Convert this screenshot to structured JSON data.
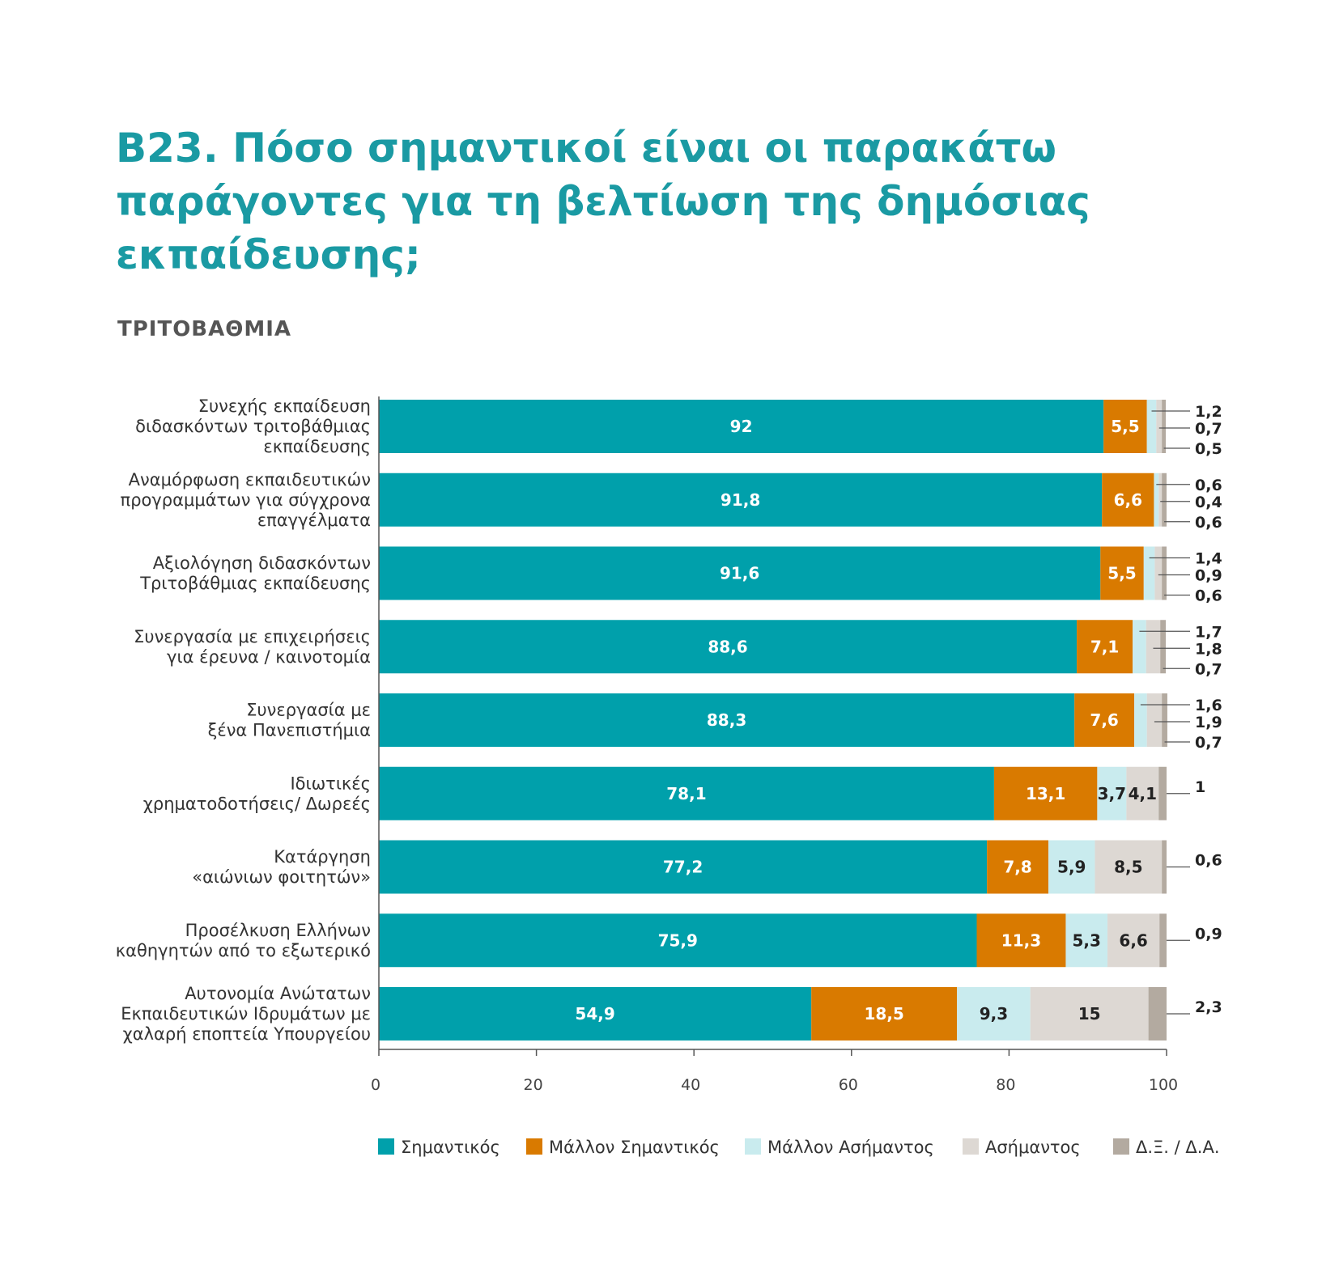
{
  "title": "Β23. Πόσο σημαντικοί είναι οι παρακάτω παράγοντες για τη βελτίωση της δημόσιας εκπαίδευσης;",
  "subtitle": "ΤΡΙΤΟΒΑΘΜΙΑ",
  "chart_data": {
    "type": "bar",
    "orientation": "horizontal",
    "stacked": true,
    "categories": [
      [
        "Συνεχής εκπαίδευση",
        "διδασκόντων τριτοβάθμιας",
        "εκπαίδευσης"
      ],
      [
        "Αναμόρφωση εκπαιδευτικών",
        "προγραμμάτων για σύγχρονα",
        "επαγγέλματα"
      ],
      [
        "Αξιολόγηση διδασκόντων",
        "Τριτοβάθμιας εκπαίδευσης"
      ],
      [
        "Συνεργασία με επιχειρήσεις",
        "για έρευνα / καινοτομία"
      ],
      [
        "Συνεργασία με",
        "ξένα Πανεπιστήμια"
      ],
      [
        "Ιδιωτικές",
        "χρηματοδοτήσεις/ Δωρεές"
      ],
      [
        "Κατάργηση",
        "«αιώνιων φοιτητών»"
      ],
      [
        "Προσέλκυση Ελλήνων",
        "καθηγητών από το εξωτερικό"
      ],
      [
        "Αυτονομία Ανώτατων",
        "Εκπαιδευτικών Ιδρυμάτων με",
        "χαλαρή εποπτεία Υπουργείου"
      ]
    ],
    "series": [
      {
        "name": "Σημαντικός",
        "color": "#00a0ab",
        "label_color": "#ffffff",
        "values": [
          92,
          91.8,
          91.6,
          88.6,
          88.3,
          78.1,
          77.2,
          75.9,
          54.9
        ],
        "labels": [
          "92",
          "91,8",
          "91,6",
          "88,6",
          "88,3",
          "78,1",
          "77,2",
          "75,9",
          "54,9"
        ]
      },
      {
        "name": "Μάλλον Σημαντικός",
        "color": "#d97a00",
        "label_color": "#ffffff",
        "values": [
          5.5,
          6.6,
          5.5,
          7.1,
          7.6,
          13.1,
          7.8,
          11.3,
          18.5
        ],
        "labels": [
          "5,5",
          "6,6",
          "5,5",
          "7,1",
          "7,6",
          "13,1",
          "7,8",
          "11,3",
          "18,5"
        ]
      },
      {
        "name": "Μάλλον Ασήμαντος",
        "color": "#c9ebee",
        "label_color": "#222222",
        "values": [
          1.2,
          0.6,
          1.4,
          1.7,
          1.6,
          3.7,
          5.9,
          5.3,
          9.3
        ],
        "labels": [
          "1,2",
          "0,6",
          "1,4",
          "1,7",
          "1,6",
          "3,7",
          "5,9",
          "5,3",
          "9,3"
        ]
      },
      {
        "name": "Ασήμαντος",
        "color": "#ddd8d3",
        "label_color": "#222222",
        "values": [
          0.7,
          0.4,
          0.9,
          1.8,
          1.9,
          4.1,
          8.5,
          6.6,
          15
        ],
        "labels": [
          "0,7",
          "0,4",
          "0,9",
          "1,8",
          "1,9",
          "4,1",
          "8,5",
          "6,6",
          "15"
        ]
      },
      {
        "name": "Δ.Ξ. / Δ.Α.",
        "color": "#b3aaa0",
        "label_color": "#222222",
        "values": [
          0.5,
          0.6,
          0.6,
          0.7,
          0.7,
          1,
          0.6,
          0.9,
          2.3
        ],
        "labels": [
          "0,5",
          "0,6",
          "0,6",
          "0,7",
          "0,7",
          "1",
          "0,6",
          "0,9",
          "2,3"
        ]
      }
    ],
    "xlim": [
      0,
      100
    ],
    "xticks": [
      "0",
      "20",
      "40",
      "60",
      "80",
      "100"
    ],
    "legend_position": "bottom",
    "grid": false
  }
}
